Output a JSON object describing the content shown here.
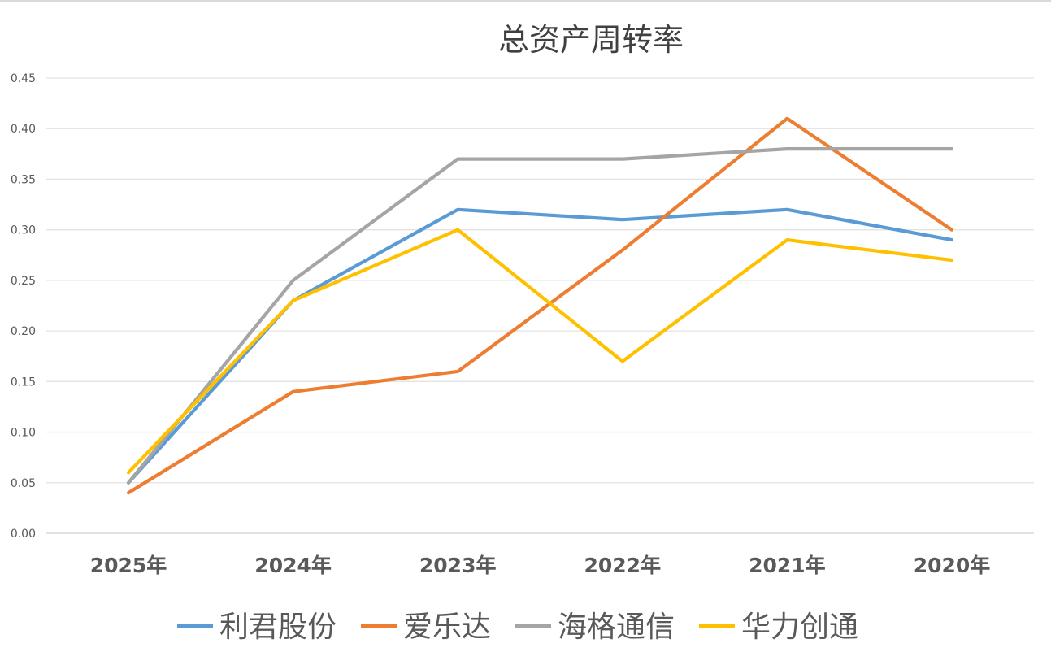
{
  "chart_data": {
    "type": "line",
    "title": "总资产周转率",
    "xlabel": "",
    "ylabel": "",
    "categories": [
      "2025年",
      "2024年",
      "2023年",
      "2022年",
      "2021年",
      "2020年"
    ],
    "ylim": [
      0,
      0.45
    ],
    "yticks": [
      "0.00",
      "0.05",
      "0.10",
      "0.15",
      "0.20",
      "0.25",
      "0.30",
      "0.35",
      "0.40",
      "0.45"
    ],
    "grid": true,
    "legend": "bottom",
    "series": [
      {
        "name": "利君股份",
        "color": "#5b9bd5",
        "values": [
          0.05,
          0.23,
          0.32,
          0.31,
          0.32,
          0.29
        ]
      },
      {
        "name": "爱乐达",
        "color": "#ed7d31",
        "values": [
          0.04,
          0.14,
          0.16,
          0.28,
          0.41,
          0.3
        ]
      },
      {
        "name": "海格通信",
        "color": "#a5a5a5",
        "values": [
          0.05,
          0.25,
          0.37,
          0.37,
          0.38,
          0.38
        ]
      },
      {
        "name": "华力创通",
        "color": "#ffc000",
        "values": [
          0.06,
          0.23,
          0.3,
          0.17,
          0.29,
          0.27
        ]
      }
    ]
  }
}
